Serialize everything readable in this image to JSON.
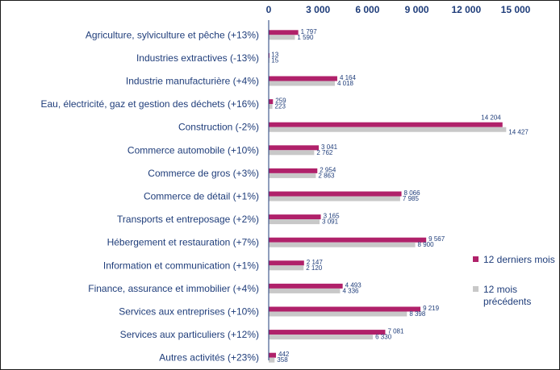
{
  "colors": {
    "current": "#b0216a",
    "previous": "#c8c8c8",
    "text": "#1f3d7a",
    "axis": "#1f3d7a"
  },
  "chart_data": {
    "type": "bar",
    "orientation": "horizontal",
    "xlim": [
      0,
      15000
    ],
    "ticks": [
      0,
      3000,
      6000,
      9000,
      12000,
      15000
    ],
    "tick_labels": [
      "0",
      "3 000",
      "6 000",
      "9 000",
      "12 000",
      "15 000"
    ],
    "grid": false,
    "legend_position": "right",
    "categories": [
      "Agriculture, sylviculture et pêche (+13%)",
      "Industries extractives (-13%)",
      "Industrie manufacturière (+4%)",
      "Eau, électricité, gaz et gestion des déchets (+16%)",
      "Construction (-2%)",
      "Commerce automobile (+10%)",
      "Commerce de gros (+3%)",
      "Commerce de détail (+1%)",
      "Transports et entreposage (+2%)",
      "Hébergement et restauration (+7%)",
      "Information et communication (+1%)",
      "Finance, assurance et immobilier (+4%)",
      "Services aux entreprises (+10%)",
      "Services aux particuliers (+12%)",
      "Autres activités (+23%)"
    ],
    "series": [
      {
        "name": "12 derniers mois",
        "values": [
          1797,
          13,
          4164,
          259,
          14204,
          3041,
          2954,
          8066,
          3165,
          9567,
          2147,
          4493,
          9219,
          7081,
          442
        ],
        "labels": [
          "1 797",
          "13",
          "4 164",
          "259",
          "14 204",
          "3 041",
          "2 954",
          "8 066",
          "3 165",
          "9 567",
          "2 147",
          "4 493",
          "9 219",
          "7 081",
          "442"
        ]
      },
      {
        "name": "12 mois précédents",
        "values": [
          1590,
          15,
          4018,
          223,
          14427,
          2762,
          2863,
          7985,
          3091,
          8900,
          2120,
          4336,
          8398,
          6330,
          358
        ],
        "labels": [
          "1 590",
          "15",
          "4 018",
          "223",
          "14 427",
          "2 762",
          "2 863",
          "7 985",
          "3 091",
          "8 900",
          "2 120",
          "4 336",
          "8 398",
          "6 330",
          "358"
        ]
      }
    ],
    "legend": [
      {
        "lines": [
          "12 derniers mois"
        ]
      },
      {
        "lines": [
          "12 mois",
          "précédents"
        ]
      }
    ]
  }
}
